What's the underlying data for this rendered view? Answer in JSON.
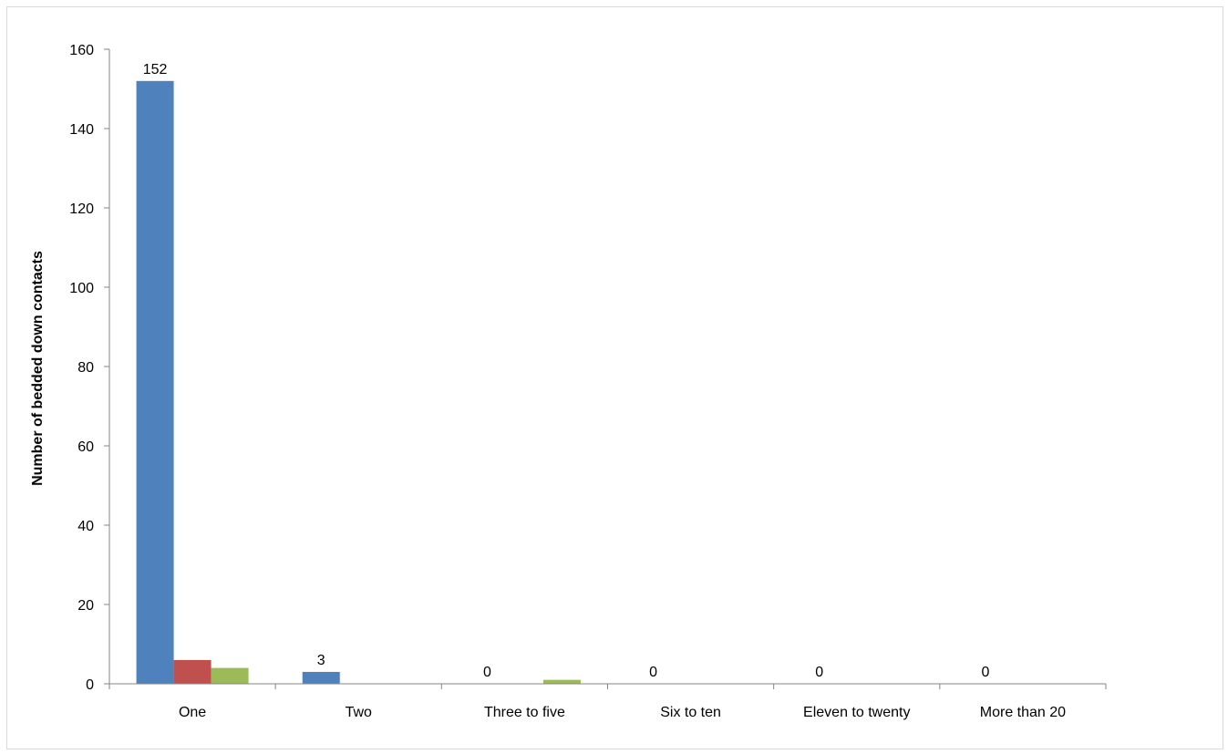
{
  "chart_data": {
    "type": "bar",
    "title": "",
    "xlabel": "",
    "ylabel": "Number of bedded down contacts",
    "ylim": [
      0,
      160
    ],
    "yticks": [
      0,
      20,
      40,
      60,
      80,
      100,
      120,
      140,
      160
    ],
    "grid": false,
    "legend": "none",
    "categories": [
      "One",
      "Two",
      "Three to five",
      "Six to ten",
      "Eleven to twenty",
      "More than 20"
    ],
    "series": [
      {
        "values": [
          152,
          3,
          0,
          0,
          0,
          0
        ],
        "color": "#4F81BD",
        "data_labels": [
          "152",
          "3",
          "0",
          "0",
          "0",
          "0"
        ]
      },
      {
        "values": [
          6,
          0,
          0,
          0,
          0,
          0
        ],
        "color": "#C0504D"
      },
      {
        "values": [
          4,
          0,
          1,
          0,
          0,
          0
        ],
        "color": "#9BBB59"
      }
    ]
  }
}
